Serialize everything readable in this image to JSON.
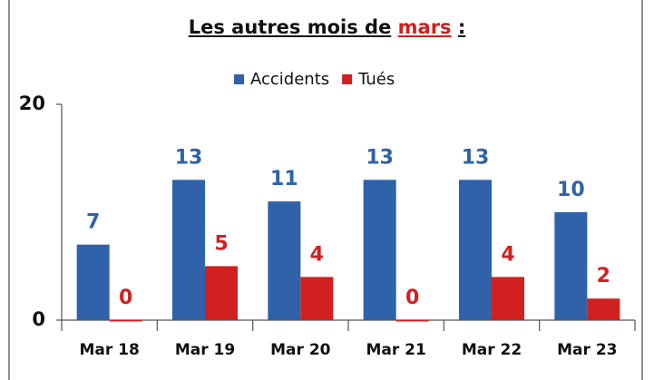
{
  "chart_data": {
    "type": "bar",
    "title": [
      "Les autres mois de",
      "mars",
      ":"
    ],
    "title_colors": [
      "#111111",
      "#d21f1f",
      "#111111"
    ],
    "categories": [
      "Mar 18",
      "Mar 19",
      "Mar 20",
      "Mar 21",
      "Mar 22",
      "Mar 23"
    ],
    "series": [
      {
        "name": "Accidents",
        "color": "#2f62a9",
        "values": [
          7,
          13,
          11,
          13,
          13,
          10
        ]
      },
      {
        "name": "Tués",
        "color": "#d21f1f",
        "values": [
          0,
          5,
          4,
          0,
          4,
          2
        ]
      }
    ],
    "ylim": [
      0,
      20
    ],
    "yticks": [
      0,
      20
    ],
    "grid": false,
    "legend": "top"
  }
}
